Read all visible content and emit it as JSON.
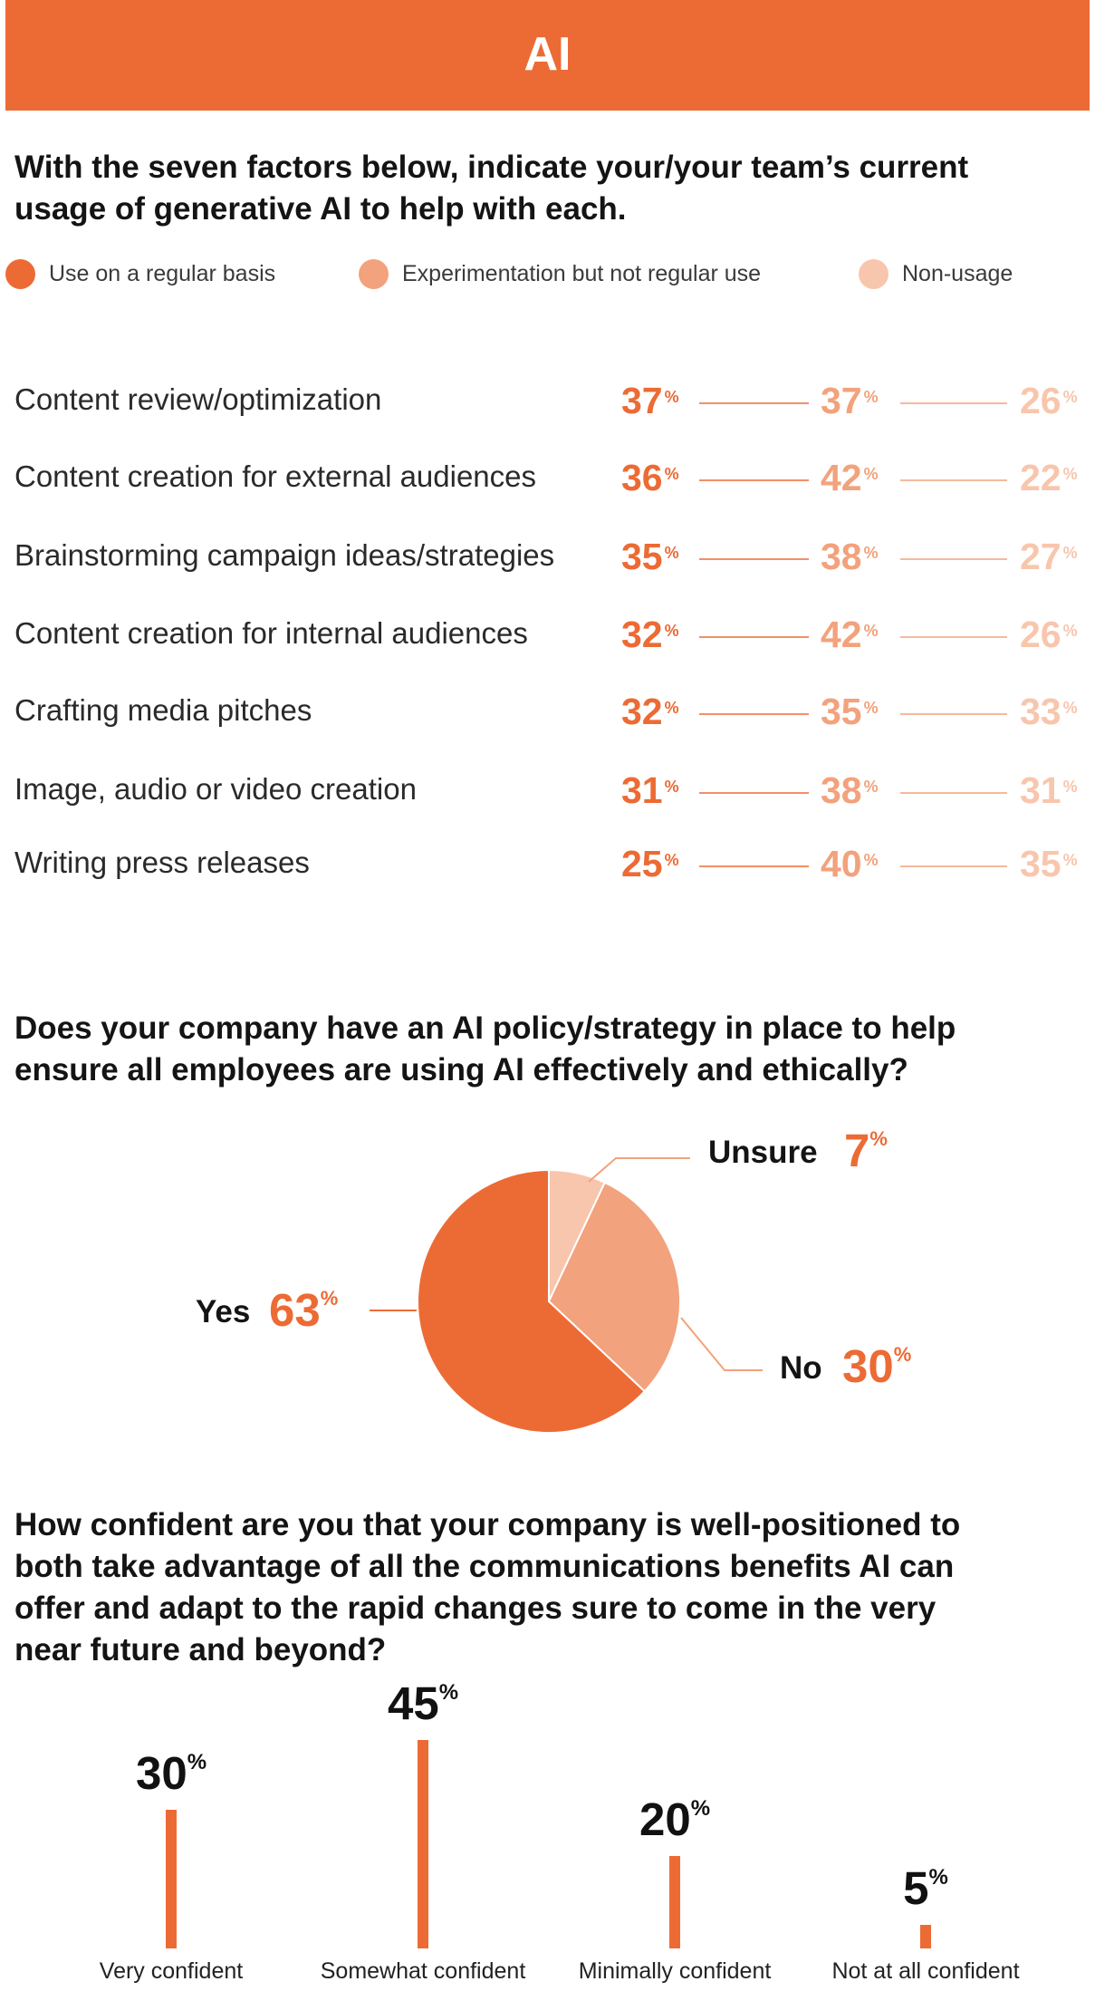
{
  "banner": {
    "title": "AI"
  },
  "q1": {
    "title_line1": "With the seven factors below, indicate your/your team’s current",
    "title_line2": "usage of generative AI to help with each.",
    "legend": [
      {
        "label": "Use on a regular basis",
        "color": "#ec6b35"
      },
      {
        "label": "Experimentation but not regular use",
        "color": "#f2a27c"
      },
      {
        "label": "Non-usage",
        "color": "#f8c6ad"
      }
    ]
  },
  "pct_sign": "%",
  "chart_data": [
    {
      "type": "table",
      "title": "With the seven factors below, indicate your/your team’s current usage of generative AI to help with each.",
      "series": [
        {
          "name": "Use on a regular basis",
          "color": "#ec6b35"
        },
        {
          "name": "Experimentation but not regular use",
          "color": "#f2a27c"
        },
        {
          "name": "Non-usage",
          "color": "#f8c6ad"
        }
      ],
      "rows": [
        {
          "label": "Content review/optimization",
          "values": [
            37,
            37,
            26
          ]
        },
        {
          "label": "Content creation for external audiences",
          "values": [
            36,
            42,
            22
          ]
        },
        {
          "label": "Brainstorming campaign ideas/strategies",
          "values": [
            35,
            38,
            27
          ]
        },
        {
          "label": "Content creation for internal audiences",
          "values": [
            32,
            42,
            26
          ]
        },
        {
          "label": "Crafting media pitches",
          "values": [
            32,
            35,
            33
          ]
        },
        {
          "label": "Image, audio or video creation",
          "values": [
            31,
            38,
            31
          ]
        },
        {
          "label": "Writing press releases",
          "values": [
            25,
            40,
            35
          ]
        }
      ]
    },
    {
      "type": "pie",
      "title": "Does your company have an AI policy/strategy in place to help ensure all employees are using AI effectively and ethically?",
      "slices": [
        {
          "label": "Unsure",
          "value": 7,
          "color": "#f8c6ad"
        },
        {
          "label": "No",
          "value": 30,
          "color": "#f2a27c"
        },
        {
          "label": "Yes",
          "value": 63,
          "color": "#ec6b35"
        }
      ]
    },
    {
      "type": "bar",
      "title": "How confident are you that your company is well-positioned to both take advantage of all the communications benefits AI can offer and adapt to the rapid changes sure to come in the very near future and beyond?",
      "categories": [
        "Very confident",
        "Somewhat confident",
        "Minimally confident",
        "Not at all confident"
      ],
      "values": [
        30,
        45,
        20,
        5
      ],
      "color": "#ec6b35",
      "ylim": [
        0,
        45
      ]
    }
  ],
  "q2": {
    "title_line1": "Does your company have an AI policy/strategy in place to help",
    "title_line2": "ensure all employees are using AI effectively and ethically?"
  },
  "q3": {
    "title_line1": "How confident are you that your company is well-positioned to",
    "title_line2": "both take advantage of all the communications benefits AI can",
    "title_line3": "offer and adapt to the rapid changes sure to come in the very",
    "title_line4": "near future and beyond?"
  }
}
